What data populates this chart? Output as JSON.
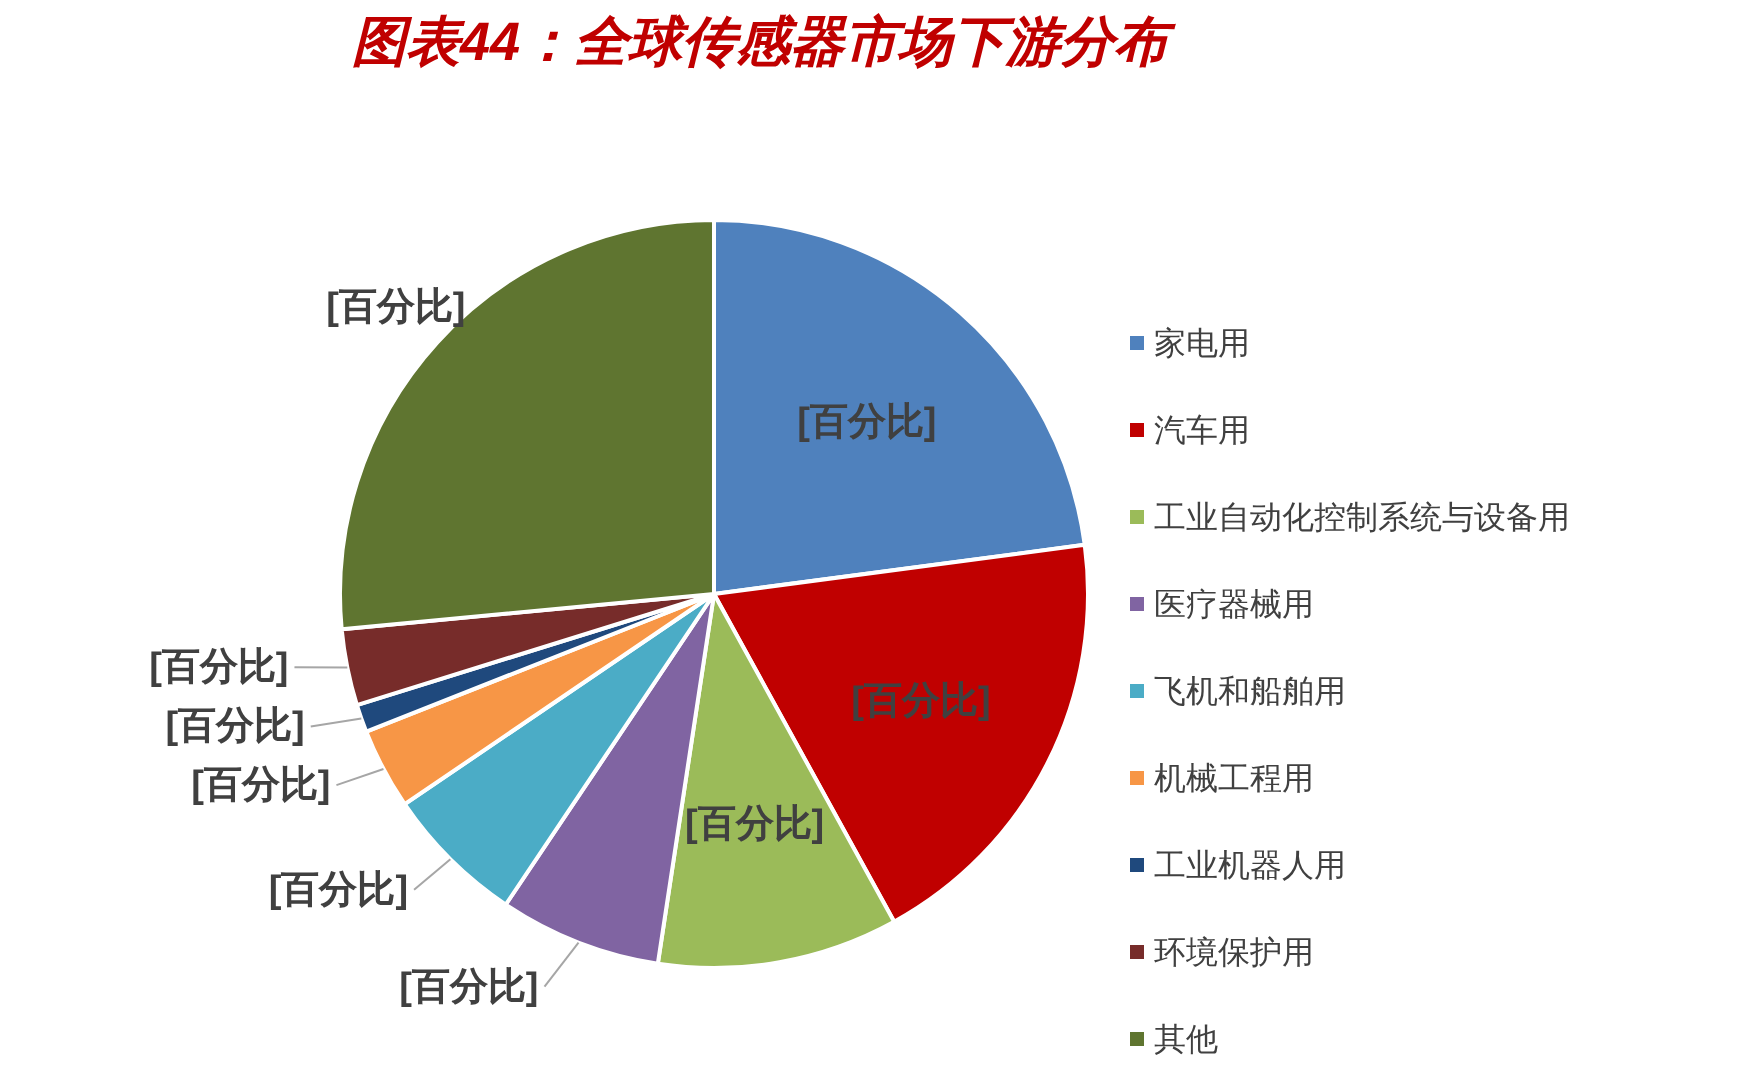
{
  "chart_data": {
    "type": "pie",
    "title": "图表44：全球传感器市场下游分布",
    "categories": [
      "家电用",
      "汽车用",
      "工业自动化控制系统与设备用",
      "医疗器械用",
      "飞机和船舶用",
      "机械工程用",
      "工业机器人用",
      "环境保护用",
      "其他"
    ],
    "values": [
      22.9,
      19.1,
      10.4,
      7.0,
      6.1,
      3.5,
      1.2,
      3.3,
      26.5
    ],
    "colors": [
      "#4f81bd",
      "#c00000",
      "#9bbb59",
      "#8064a2",
      "#4bacc6",
      "#f79646",
      "#1f497d",
      "#772c2a",
      "#5f7530"
    ],
    "value_labels": [
      "[百分比]",
      "[百分比]",
      "[百分比]",
      "[百分比]",
      "[百分比]",
      "[百分比]",
      "[百分比]",
      "[百分比]",
      "[百分比]"
    ],
    "legend": "right"
  }
}
